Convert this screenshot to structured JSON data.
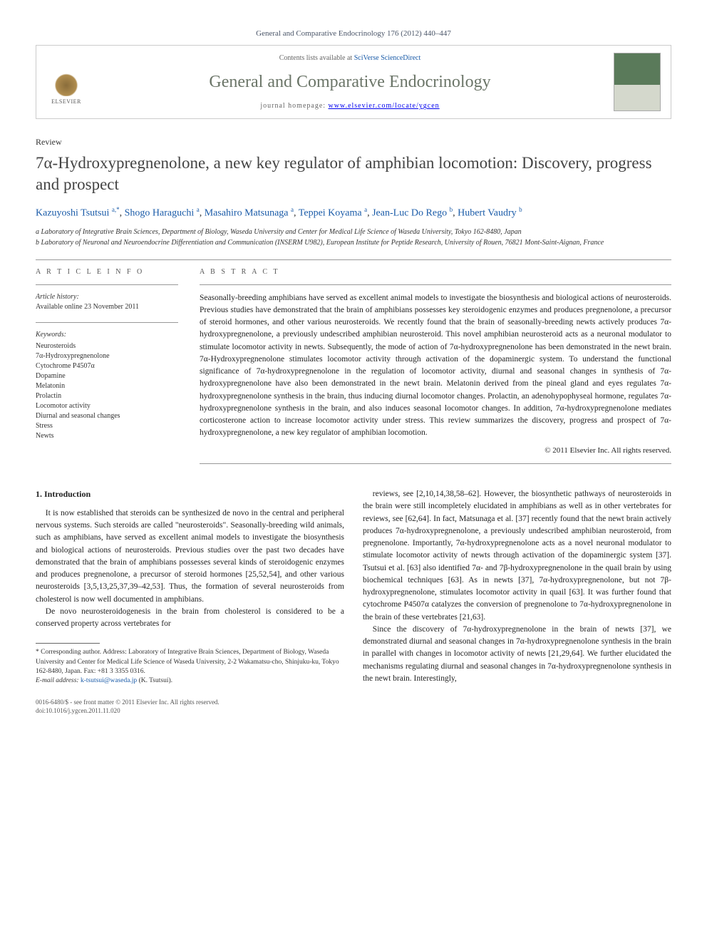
{
  "citation": "General and Comparative Endocrinology 176 (2012) 440–447",
  "contents_prefix": "Contents lists available at ",
  "contents_link": "SciVerse ScienceDirect",
  "journal": "General and Comparative Endocrinology",
  "homepage_prefix": "journal homepage: ",
  "homepage_url": "www.elsevier.com/locate/ygcen",
  "elsevier_label": "ELSEVIER",
  "review_label": "Review",
  "title": "7α-Hydroxypregnenolone, a new key regulator of amphibian locomotion: Discovery, progress and prospect",
  "authors_html": "Kazuyoshi Tsutsui <sup>a,*</sup>, Shogo Haraguchi <sup>a</sup>, Masahiro Matsunaga <sup>a</sup>, Teppei Koyama <sup>a</sup>, Jean-Luc Do Rego <sup>b</sup>, Hubert Vaudry <sup>b</sup>",
  "affil_a": "a Laboratory of Integrative Brain Sciences, Department of Biology, Waseda University and Center for Medical Life Science of Waseda University, Tokyo 162-8480, Japan",
  "affil_b": "b Laboratory of Neuronal and Neuroendocrine Differentiation and Communication (INSERM U982), European Institute for Peptide Research, University of Rouen, 76821 Mont-Saint-Aignan, France",
  "article_info_heading": "A R T I C L E   I N F O",
  "abstract_heading": "A B S T R A C T",
  "history_label": "Article history:",
  "history_text": "Available online 23 November 2011",
  "keywords_label": "Keywords:",
  "keywords": [
    "Neurosteroids",
    "7α-Hydroxypregnenolone",
    "Cytochrome P4507α",
    "Dopamine",
    "Melatonin",
    "Prolactin",
    "Locomotor activity",
    "Diurnal and seasonal changes",
    "Stress",
    "Newts"
  ],
  "abstract": "Seasonally-breeding amphibians have served as excellent animal models to investigate the biosynthesis and biological actions of neurosteroids. Previous studies have demonstrated that the brain of amphibians possesses key steroidogenic enzymes and produces pregnenolone, a precursor of steroid hormones, and other various neurosteroids. We recently found that the brain of seasonally-breeding newts actively produces 7α-hydroxypregnenolone, a previously undescribed amphibian neurosteroid. This novel amphibian neurosteroid acts as a neuronal modulator to stimulate locomotor activity in newts. Subsequently, the mode of action of 7α-hydroxypregnenolone has been demonstrated in the newt brain. 7α-Hydroxypregnenolone stimulates locomotor activity through activation of the dopaminergic system. To understand the functional significance of 7α-hydroxypregnenolone in the regulation of locomotor activity, diurnal and seasonal changes in synthesis of 7α-hydroxypregnenolone have also been demonstrated in the newt brain. Melatonin derived from the pineal gland and eyes regulates 7α-hydroxypregnenolone synthesis in the brain, thus inducing diurnal locomotor changes. Prolactin, an adenohypophyseal hormone, regulates 7α-hydroxypregnenolone synthesis in the brain, and also induces seasonal locomotor changes. In addition, 7α-hydroxypregnenolone mediates corticosterone action to increase locomotor activity under stress. This review summarizes the discovery, progress and prospect of 7α-hydroxypregnenolone, a new key regulator of amphibian locomotion.",
  "copyright": "© 2011 Elsevier Inc. All rights reserved.",
  "intro_heading": "1. Introduction",
  "para1": "It is now established that steroids can be synthesized de novo in the central and peripheral nervous systems. Such steroids are called \"neurosteroids\". Seasonally-breeding wild animals, such as amphibians, have served as excellent animal models to investigate the biosynthesis and biological actions of neurosteroids. Previous studies over the past two decades have demonstrated that the brain of amphibians possesses several kinds of steroidogenic enzymes and produces pregnenolone, a precursor of steroid hormones [25,52,54], and other various neurosteroids [3,5,13,25,37,39–42,53]. Thus, the formation of several neurosteroids from cholesterol is now well documented in amphibians.",
  "para2": "De novo neurosteroidogenesis in the brain from cholesterol is considered to be a conserved property across vertebrates for",
  "para3": "reviews, see [2,10,14,38,58–62]. However, the biosynthetic pathways of neurosteroids in the brain were still incompletely elucidated in amphibians as well as in other vertebrates for reviews, see [62,64]. In fact, Matsunaga et al. [37] recently found that the newt brain actively produces 7α-hydroxypregnenolone, a previously undescribed amphibian neurosteroid, from pregnenolone. Importantly, 7α-hydroxypregnenolone acts as a novel neuronal modulator to stimulate locomotor activity of newts through activation of the dopaminergic system [37]. Tsutsui et al. [63] also identified 7α- and 7β-hydroxypregnenolone in the quail brain by using biochemical techniques [63]. As in newts [37], 7α-hydroxypregnenolone, but not 7β-hydroxypregnenolone, stimulates locomotor activity in quail [63]. It was further found that cytochrome P4507α catalyzes the conversion of pregnenolone to 7α-hydroxypregnenolone in the brain of these vertebrates [21,63].",
  "para4": "Since the discovery of 7α-hydroxypregnenolone in the brain of newts [37], we demonstrated diurnal and seasonal changes in 7α-hydroxypregnenolone synthesis in the brain in parallel with changes in locomotor activity of newts [21,29,64]. We further elucidated the mechanisms regulating diurnal and seasonal changes in 7α-hydroxypregnenolone synthesis in the newt brain. Interestingly,",
  "corr_author": "* Corresponding author. Address: Laboratory of Integrative Brain Sciences, Department of Biology, Waseda University and Center for Medical Life Science of Waseda University, 2-2 Wakamatsu-cho, Shinjuku-ku, Tokyo 162-8480, Japan. Fax: +81 3 3355 0316.",
  "email_label": "E-mail address:",
  "email": "k-tsutsui@waseda.jp",
  "email_name": "(K. Tsutsui).",
  "footer1": "0016-6480/$ - see front matter © 2011 Elsevier Inc. All rights reserved.",
  "footer2": "doi:10.1016/j.ygcen.2011.11.020"
}
